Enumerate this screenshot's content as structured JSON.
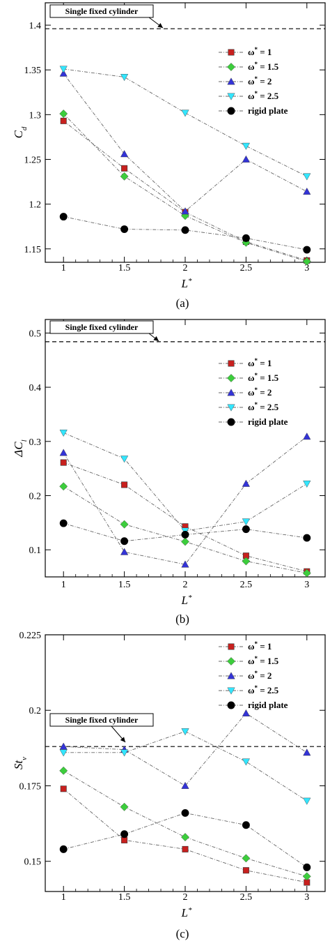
{
  "chart_data": [
    {
      "type": "line",
      "panel_label": "(a)",
      "xlabel": "L*",
      "ylabel": "C_d",
      "x": [
        1,
        1.5,
        2,
        2.5,
        3
      ],
      "xticks": [
        "1",
        "1.5",
        "2",
        "2.5",
        "3"
      ],
      "yticks": [
        "1.15",
        "1.2",
        "1.25",
        "1.3",
        "1.35",
        "1.4"
      ],
      "ylim": [
        1.135,
        1.425
      ],
      "grid": false,
      "legend_position": "top-right",
      "reference": {
        "label": "Single fixed cylinder",
        "value": 1.396
      },
      "series": [
        {
          "name": "ω* = 1",
          "marker": "square",
          "color": "#c8201e",
          "values": [
            1.293,
            1.24,
            1.191,
            1.158,
            1.137
          ]
        },
        {
          "name": "ω* = 1.5",
          "marker": "diamond",
          "color": "#3ccd3c",
          "values": [
            1.301,
            1.231,
            1.187,
            1.157,
            1.136
          ]
        },
        {
          "name": "ω* = 2",
          "marker": "triangle-up",
          "color": "#3333d6",
          "values": [
            1.346,
            1.256,
            1.192,
            1.25,
            1.214
          ]
        },
        {
          "name": "ω* = 2.5",
          "marker": "triangle-down",
          "color": "#33e6ff",
          "values": [
            1.351,
            1.342,
            1.302,
            1.265,
            1.231
          ]
        },
        {
          "name": "rigid plate",
          "marker": "circle",
          "color": "#000000",
          "values": [
            1.186,
            1.172,
            1.171,
            1.162,
            1.149
          ]
        }
      ]
    },
    {
      "type": "line",
      "panel_label": "(b)",
      "xlabel": "L*",
      "ylabel": "ΔC_l",
      "x": [
        1,
        1.5,
        2,
        2.5,
        3
      ],
      "xticks": [
        "1",
        "1.5",
        "2",
        "2.5",
        "3"
      ],
      "yticks": [
        "0.1",
        "0.2",
        "0.3",
        "0.4",
        "0.5"
      ],
      "ylim": [
        0.05,
        0.525
      ],
      "grid": false,
      "legend_position": "top-right",
      "reference": {
        "label": "Single fixed cylinder",
        "value": 0.484
      },
      "series": [
        {
          "name": "ω* = 1",
          "marker": "square",
          "color": "#c8201e",
          "values": [
            0.261,
            0.22,
            0.143,
            0.089,
            0.06
          ]
        },
        {
          "name": "ω* = 1.5",
          "marker": "diamond",
          "color": "#3ccd3c",
          "values": [
            0.217,
            0.147,
            0.115,
            0.079,
            0.057
          ]
        },
        {
          "name": "ω* = 2",
          "marker": "triangle-up",
          "color": "#3333d6",
          "values": [
            0.279,
            0.096,
            0.073,
            0.222,
            0.309
          ]
        },
        {
          "name": "ω* = 2.5",
          "marker": "triangle-down",
          "color": "#33e6ff",
          "values": [
            0.316,
            0.268,
            0.135,
            0.152,
            0.222
          ]
        },
        {
          "name": "rigid plate",
          "marker": "circle",
          "color": "#000000",
          "values": [
            0.149,
            0.116,
            0.128,
            0.138,
            0.122
          ]
        }
      ]
    },
    {
      "type": "line",
      "panel_label": "(c)",
      "xlabel": "L*",
      "ylabel": "St_v",
      "x": [
        1,
        1.5,
        2,
        2.5,
        3
      ],
      "xticks": [
        "1",
        "1.5",
        "2",
        "2.5",
        "3"
      ],
      "yticks": [
        "0.15",
        "0.175",
        "0.2",
        "0.225"
      ],
      "ylim": [
        0.14,
        0.225
      ],
      "grid": false,
      "legend_position": "top-right",
      "reference": {
        "label": "Single fixed cylinder",
        "value": 0.188
      },
      "series": [
        {
          "name": "ω* = 1",
          "marker": "square",
          "color": "#c8201e",
          "values": [
            0.174,
            0.157,
            0.154,
            0.147,
            0.143
          ]
        },
        {
          "name": "ω* = 1.5",
          "marker": "diamond",
          "color": "#3ccd3c",
          "values": [
            0.18,
            0.168,
            0.158,
            0.151,
            0.145
          ]
        },
        {
          "name": "ω* = 2",
          "marker": "triangle-up",
          "color": "#3333d6",
          "values": [
            0.188,
            0.187,
            0.175,
            0.199,
            0.186
          ]
        },
        {
          "name": "ω* = 2.5",
          "marker": "triangle-down",
          "color": "#33e6ff",
          "values": [
            0.186,
            0.186,
            0.193,
            0.183,
            0.17
          ]
        },
        {
          "name": "rigid plate",
          "marker": "circle",
          "color": "#000000",
          "values": [
            0.154,
            0.159,
            0.166,
            0.162,
            0.148
          ]
        }
      ]
    }
  ]
}
